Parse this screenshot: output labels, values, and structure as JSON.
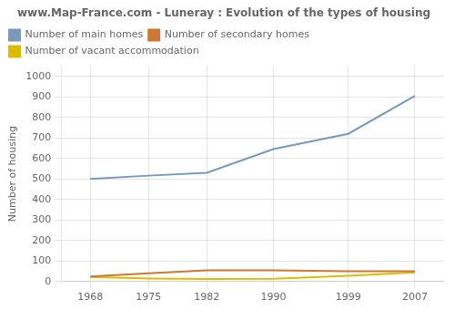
{
  "chart_data": {
    "type": "line",
    "title": "www.Map-France.com - Luneray : Evolution of the types of housing",
    "ylabel": "Number of housing",
    "x": [
      1968,
      1975,
      1982,
      1990,
      1999,
      2007
    ],
    "series": [
      {
        "name": "Number of main homes",
        "color": "#7799bb",
        "values": [
          500,
          516,
          530,
          645,
          720,
          905
        ]
      },
      {
        "name": "Number of secondary homes",
        "color": "#cc7733",
        "values": [
          25,
          40,
          55,
          55,
          50,
          50
        ]
      },
      {
        "name": "Number of vacant accommodation",
        "color": "#ddbb00",
        "values": [
          22,
          15,
          12,
          14,
          28,
          45
        ]
      }
    ],
    "xlim": [
      1964.5,
      2010.5
    ],
    "xticks": [
      1968,
      1975,
      1982,
      1990,
      1999,
      2007
    ],
    "ylim": [
      0,
      1050
    ],
    "yticks": [
      0,
      100,
      200,
      300,
      400,
      500,
      600,
      700,
      800,
      900,
      1000
    ],
    "grid": true,
    "legend": "upper left"
  }
}
